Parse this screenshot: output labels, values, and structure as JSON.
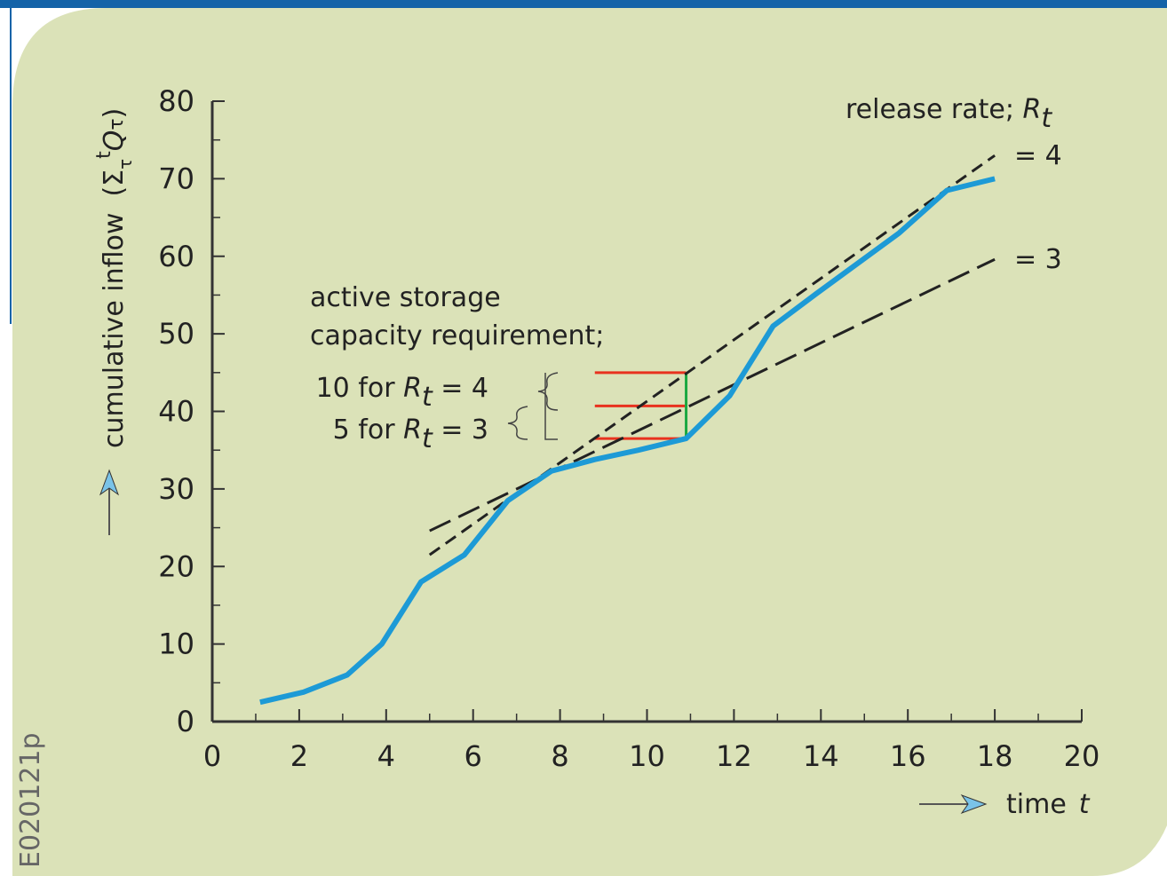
{
  "chart_data": {
    "type": "line",
    "y_label": "cumulative inflow",
    "y_label_formula": {
      "open": "(Σ",
      "sub": "τ",
      "sup": "t",
      "q": "Q",
      "qsub": "τ",
      "close": ")"
    },
    "x_label": {
      "text": "time",
      "var": "t"
    },
    "code": "E020121p",
    "xlim": [
      0,
      20
    ],
    "xticks": [
      0,
      2,
      4,
      6,
      8,
      10,
      12,
      14,
      16,
      18,
      20
    ],
    "xticks_minor": [
      1,
      3,
      5,
      7,
      9,
      11,
      13,
      15,
      17,
      19
    ],
    "ylim": [
      0,
      80
    ],
    "yticks": [
      0,
      10,
      20,
      30,
      40,
      50,
      60,
      70,
      80
    ],
    "yticks_minor": [
      5,
      15,
      25,
      35,
      45,
      55,
      65,
      75
    ],
    "series": [
      {
        "color": "#1d9ad6",
        "x": [
          1.1,
          2.1,
          3.1,
          3.9,
          4.8,
          5.8,
          6.8,
          7.8,
          8.8,
          9.8,
          10.9,
          11.9,
          12.9,
          13.9,
          15.8,
          16.9,
          18
        ],
        "values": [
          2.5,
          3.8,
          6,
          10,
          18,
          21.5,
          28.5,
          32.3,
          33.8,
          35,
          36.5,
          42,
          51,
          55.2,
          63,
          68.5,
          70
        ]
      }
    ],
    "release_lines": [
      {
        "x": [
          5,
          18
        ],
        "values": [
          21.5,
          73
        ],
        "label": "= 4",
        "dash": "14 8"
      },
      {
        "x": [
          5,
          18
        ],
        "values": [
          24.6,
          59.6
        ],
        "label": "= 3",
        "dash": "26 10"
      }
    ],
    "release_title": {
      "text": "release rate; ",
      "var": "R",
      "sub": "t"
    },
    "storage": {
      "color": "#e8321e",
      "bar_color": "#1aa840",
      "x": [
        8.8,
        10.9
      ],
      "levels": [
        45,
        40.7,
        36.5
      ]
    },
    "storage_text": [
      "active storage",
      "capacity requirement;"
    ],
    "storage_items": [
      {
        "pre": "10 for ",
        "var": "R",
        "sub": "t",
        "post": " = 4"
      },
      {
        "pre": "5 for ",
        "var": "R",
        "sub": "t",
        "post": " = 3"
      }
    ]
  }
}
